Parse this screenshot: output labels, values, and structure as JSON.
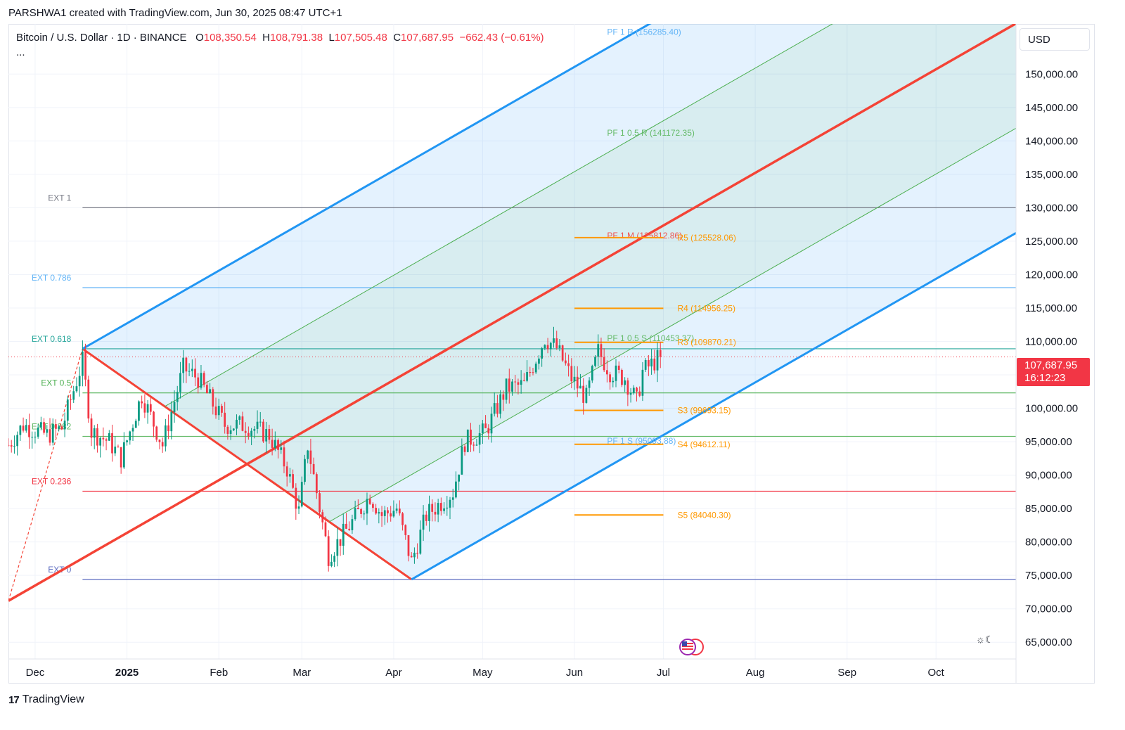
{
  "header": {
    "credit": "PARSHWA1 created with TradingView.com, Jun 30, 2025 08:47 UTC+1"
  },
  "legend": {
    "symbol": "Bitcoin / U.S. Dollar · 1D · BINANCE",
    "o_label": "O",
    "o": "108,350.54",
    "h_label": "H",
    "h": "108,791.38",
    "l_label": "L",
    "l": "107,505.48",
    "c_label": "C",
    "c": "107,687.95",
    "change": "−662.43 (−0.61%)",
    "more": "..."
  },
  "currency": "USD",
  "price_tag": {
    "price": "107,687.95",
    "countdown": "16:12:23",
    "color": "#f23645"
  },
  "footer": {
    "brand": "TradingView"
  },
  "colors": {
    "up": "#089981",
    "down": "#f23645",
    "pitchfork_blue": "#2196f3",
    "pitchfork_green": "#4caf50",
    "pitchfork_red": "#f44336",
    "pivot_orange": "#ff9800"
  },
  "chart_data": {
    "type": "candlestick",
    "ylim": [
      62500,
      157500
    ],
    "yticks": [
      "150,000.00",
      "145,000.00",
      "140,000.00",
      "135,000.00",
      "130,000.00",
      "125,000.00",
      "120,000.00",
      "115,000.00",
      "110,000.00",
      "105,000.00",
      "100,000.00",
      "95,000.00",
      "90,000.00",
      "85,000.00",
      "80,000.00",
      "75,000.00",
      "70,000.00",
      "65,000.00"
    ],
    "xlim": [
      "2024-11-22",
      "2025-10-28"
    ],
    "xticks": [
      {
        "date": "2024-12-01",
        "label": "Dec",
        "bold": false
      },
      {
        "date": "2025-01-01",
        "label": "2025",
        "bold": true
      },
      {
        "date": "2025-02-01",
        "label": "Feb",
        "bold": false
      },
      {
        "date": "2025-03-01",
        "label": "Mar",
        "bold": false
      },
      {
        "date": "2025-04-01",
        "label": "Apr",
        "bold": false
      },
      {
        "date": "2025-05-01",
        "label": "May",
        "bold": false
      },
      {
        "date": "2025-06-01",
        "label": "Jun",
        "bold": false
      },
      {
        "date": "2025-07-01",
        "label": "Jul",
        "bold": false
      },
      {
        "date": "2025-08-01",
        "label": "Aug",
        "bold": false
      },
      {
        "date": "2025-09-01",
        "label": "Sep",
        "bold": false
      },
      {
        "date": "2025-10-01",
        "label": "Oct",
        "bold": false
      }
    ],
    "series_path": {
      "start": "2024-11-22",
      "anchors": [
        [
          "2024-11-22",
          94500
        ],
        [
          "2024-11-27",
          97500
        ],
        [
          "2024-12-05",
          96000
        ],
        [
          "2024-12-10",
          97000
        ],
        [
          "2024-12-17",
          107000
        ],
        [
          "2024-12-20",
          96500
        ],
        [
          "2024-12-26",
          95000
        ],
        [
          "2024-12-30",
          92500
        ],
        [
          "2025-01-06",
          102000
        ],
        [
          "2025-01-13",
          94500
        ],
        [
          "2025-01-20",
          106000
        ],
        [
          "2025-01-25",
          104500
        ],
        [
          "2025-02-03",
          97500
        ],
        [
          "2025-02-10",
          97500
        ],
        [
          "2025-02-18",
          96000
        ],
        [
          "2025-02-24",
          91000
        ],
        [
          "2025-02-28",
          84500
        ],
        [
          "2025-03-03",
          94500
        ],
        [
          "2025-03-10",
          78000
        ],
        [
          "2025-03-18",
          83000
        ],
        [
          "2025-03-24",
          87000
        ],
        [
          "2025-03-28",
          84000
        ],
        [
          "2025-04-02",
          85000
        ],
        [
          "2025-04-07",
          77000
        ],
        [
          "2025-04-12",
          84000
        ],
        [
          "2025-04-21",
          87500
        ],
        [
          "2025-04-25",
          95000
        ],
        [
          "2025-05-02",
          96500
        ],
        [
          "2025-05-09",
          103000
        ],
        [
          "2025-05-15",
          103500
        ],
        [
          "2025-05-22",
          110500
        ],
        [
          "2025-05-26",
          109000
        ],
        [
          "2025-05-31",
          104500
        ],
        [
          "2025-06-05",
          101500
        ],
        [
          "2025-06-09",
          108500
        ],
        [
          "2025-06-13",
          105500
        ],
        [
          "2025-06-18",
          104500
        ],
        [
          "2025-06-22",
          101000
        ],
        [
          "2025-06-24",
          105500
        ],
        [
          "2025-06-30",
          107688
        ]
      ]
    },
    "horizontal_levels": [
      {
        "label": "EXT 1",
        "value": 130000,
        "color": "#787b86"
      },
      {
        "label": "EXT 0.786",
        "value": 118050,
        "color": "#64b5f6"
      },
      {
        "label": "EXT 0.618",
        "value": 108900,
        "color": "#26a69a"
      },
      {
        "label": "EXT 0.5",
        "value": 102300,
        "color": "#4caf50"
      },
      {
        "label": "EXT 0.382",
        "value": 95800,
        "color": "#66bb6a"
      },
      {
        "label": "EXT 0.236",
        "value": 87600,
        "color": "#f23645"
      },
      {
        "label": "EXT 0",
        "value": 74400,
        "color": "#5c6bc0"
      }
    ],
    "pivot_levels": [
      {
        "label": "R5 (125528.06)",
        "value": 125528.06
      },
      {
        "label": "R4 (114956.25)",
        "value": 114956.25
      },
      {
        "label": "R3 (109870.21)",
        "value": 109870.21
      },
      {
        "label": "S3 (99693.15)",
        "value": 99693.15
      },
      {
        "label": "S4 (94612.11)",
        "value": 94612.11
      },
      {
        "label": "S5 (84040.30)",
        "value": 84040.3
      }
    ],
    "pitchfork": {
      "p1": [
        "2024-11-22",
        71200
      ],
      "p2": [
        "2024-12-17",
        108900
      ],
      "p3": [
        "2025-04-07",
        74400
      ],
      "labels": [
        {
          "label": "PF 1 R (156285.40)",
          "value": 156285.4,
          "color": "#64b5f6"
        },
        {
          "label": "PF 1 0.5 R (141172.35)",
          "value": 141172.35,
          "color": "#66bb6a"
        },
        {
          "label": "PF 1 M (125812.86)",
          "value": 125812.86,
          "color": "#ef5350"
        },
        {
          "label": "PF 1 0.5 S (110453.37)",
          "value": 110453.37,
          "color": "#66bb6a"
        },
        {
          "label": "PF 1 S (95093.88)",
          "value": 95093.88,
          "color": "#64b5f6"
        }
      ]
    },
    "last_price": 107687.95
  }
}
